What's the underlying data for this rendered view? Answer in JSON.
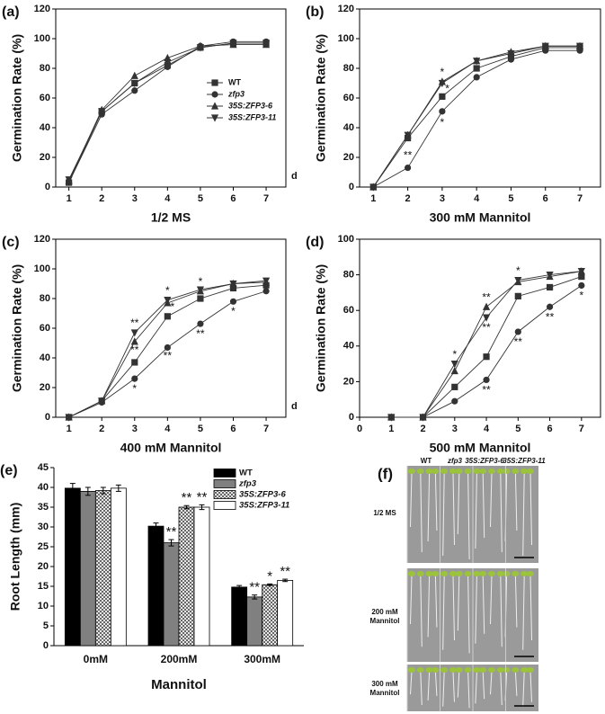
{
  "chart_data": [
    {
      "type": "line",
      "panel_label": "(a)",
      "xlabel": "1/2 MS",
      "x_unit": "d",
      "ylabel": "Germination Rate (%)",
      "x": [
        1,
        2,
        3,
        4,
        5,
        6,
        7
      ],
      "xlim": [
        0.6,
        7.6
      ],
      "xticks": [
        1,
        2,
        3,
        4,
        5,
        6,
        7
      ],
      "ylim": [
        0,
        120
      ],
      "yticks": [
        0,
        20,
        40,
        60,
        80,
        100,
        120
      ],
      "legend": true,
      "series": [
        {
          "name": "WT",
          "italic": false,
          "marker": "square",
          "color": "#333333",
          "values": [
            3,
            51,
            70,
            82,
            94,
            97,
            97
          ]
        },
        {
          "name": "zfp3",
          "italic": true,
          "marker": "circle",
          "color": "#333333",
          "values": [
            3,
            49,
            65,
            81,
            95,
            98,
            98
          ]
        },
        {
          "name": "35S:ZFP3-6",
          "italic": true,
          "marker": "triangle-up",
          "color": "#333333",
          "values": [
            4,
            52,
            75,
            87,
            95,
            96,
            96
          ]
        },
        {
          "name": "35S:ZFP3-11",
          "italic": true,
          "marker": "triangle-down",
          "color": "#333333",
          "values": [
            5,
            51,
            70,
            84,
            94,
            97,
            97
          ]
        }
      ]
    },
    {
      "type": "line",
      "panel_label": "(b)",
      "xlabel": "300 mM Mannitol",
      "x_unit": "d",
      "ylabel": "Germination Rate (%)",
      "x": [
        1,
        2,
        3,
        4,
        5,
        6,
        7
      ],
      "xlim": [
        0.6,
        7.6
      ],
      "xticks": [
        1,
        2,
        3,
        4,
        5,
        6,
        7
      ],
      "ylim": [
        0,
        120
      ],
      "yticks": [
        0,
        20,
        40,
        60,
        80,
        100,
        120
      ],
      "series": [
        {
          "marker": "square",
          "color": "#333333",
          "values": [
            0,
            33,
            61,
            80,
            88,
            94,
            94
          ]
        },
        {
          "marker": "circle",
          "color": "#333333",
          "values": [
            0,
            13,
            51,
            74,
            86,
            92,
            92
          ]
        },
        {
          "marker": "triangle-up",
          "color": "#333333",
          "values": [
            0,
            35,
            71,
            85,
            91,
            95,
            95
          ]
        },
        {
          "marker": "triangle-down",
          "color": "#333333",
          "values": [
            0,
            35,
            70,
            85,
            90,
            95,
            95
          ]
        }
      ],
      "annotations": [
        {
          "text": "**",
          "x": 2,
          "y": 21
        },
        {
          "text": "*",
          "x": 3,
          "y": 77
        },
        {
          "text": "*",
          "x": 3.15,
          "y": 66
        },
        {
          "text": "*",
          "x": 3,
          "y": 43
        }
      ]
    },
    {
      "type": "line",
      "panel_label": "(c)",
      "xlabel": "400 mM Mannitol",
      "x_unit": "d",
      "ylabel": "Germination Rate (%)",
      "x": [
        1,
        2,
        3,
        4,
        5,
        6,
        7
      ],
      "xlim": [
        0.6,
        7.6
      ],
      "xticks": [
        1,
        2,
        3,
        4,
        5,
        6,
        7
      ],
      "ylim": [
        0,
        120
      ],
      "yticks": [
        0,
        20,
        40,
        60,
        80,
        100,
        120
      ],
      "series": [
        {
          "marker": "square",
          "color": "#333333",
          "values": [
            0,
            11,
            37,
            68,
            80,
            87,
            89
          ]
        },
        {
          "marker": "circle",
          "color": "#333333",
          "values": [
            0,
            10,
            26,
            47,
            63,
            78,
            85
          ]
        },
        {
          "marker": "triangle-up",
          "color": "#333333",
          "values": [
            0,
            11,
            51,
            77,
            85,
            90,
            91
          ]
        },
        {
          "marker": "triangle-down",
          "color": "#333333",
          "values": [
            0,
            11,
            57,
            79,
            86,
            90,
            92
          ]
        }
      ],
      "annotations": [
        {
          "text": "**",
          "x": 3,
          "y": 63
        },
        {
          "text": "**",
          "x": 3,
          "y": 45
        },
        {
          "text": "*",
          "x": 3,
          "y": 19
        },
        {
          "text": "*",
          "x": 4,
          "y": 85
        },
        {
          "text": "*",
          "x": 4.15,
          "y": 74
        },
        {
          "text": "**",
          "x": 4,
          "y": 41
        },
        {
          "text": "*",
          "x": 5,
          "y": 91
        },
        {
          "text": "**",
          "x": 5,
          "y": 56
        },
        {
          "text": "*",
          "x": 6,
          "y": 71
        }
      ]
    },
    {
      "type": "line",
      "panel_label": "(d)",
      "xlabel": "500 mM Mannitol",
      "x_unit": "d",
      "ylabel": "Germination Rate (%)",
      "x": [
        1,
        2,
        3,
        4,
        5,
        6,
        7
      ],
      "xlim": [
        0,
        7.6
      ],
      "xticks": [
        0,
        1,
        2,
        3,
        4,
        5,
        6,
        7
      ],
      "ylim": [
        0,
        100
      ],
      "yticks": [
        0,
        20,
        40,
        60,
        80,
        100
      ],
      "series": [
        {
          "marker": "square",
          "color": "#333333",
          "values": [
            0,
            0,
            17,
            34,
            68,
            73,
            79
          ]
        },
        {
          "marker": "circle",
          "color": "#333333",
          "values": [
            0,
            0,
            9,
            21,
            48,
            62,
            74
          ]
        },
        {
          "marker": "triangle-up",
          "color": "#333333",
          "values": [
            0,
            0,
            26,
            62,
            76,
            79,
            82
          ]
        },
        {
          "marker": "triangle-down",
          "color": "#333333",
          "values": [
            0,
            0,
            30,
            56,
            77,
            80,
            82
          ]
        }
      ],
      "annotations": [
        {
          "text": "*",
          "x": 3,
          "y": 35
        },
        {
          "text": "**",
          "x": 4,
          "y": 67
        },
        {
          "text": "**",
          "x": 4,
          "y": 50
        },
        {
          "text": "**",
          "x": 4,
          "y": 15
        },
        {
          "text": "*",
          "x": 5,
          "y": 82
        },
        {
          "text": "**",
          "x": 5,
          "y": 42
        },
        {
          "text": "**",
          "x": 6,
          "y": 56
        },
        {
          "text": "*",
          "x": 7,
          "y": 68
        }
      ]
    },
    {
      "type": "bar",
      "panel_label": "(e)",
      "xlabel": "Mannitol",
      "ylabel": "Root Length (mm)",
      "categories": [
        "0mM",
        "200mM",
        "300mM"
      ],
      "ylim": [
        0,
        45
      ],
      "yticks": [
        0,
        5,
        10,
        15,
        20,
        25,
        30,
        35,
        40,
        45
      ],
      "legend": true,
      "series": [
        {
          "name": "WT",
          "italic": false,
          "color": "#000000",
          "hatch": false,
          "values": [
            39.8,
            30.2,
            14.8
          ],
          "errors": [
            1.2,
            0.8,
            0.4
          ],
          "sig_labels": [
            null,
            null,
            null
          ]
        },
        {
          "name": "zfp3",
          "italic": true,
          "color": "#808080",
          "hatch": false,
          "values": [
            39,
            26,
            12.3
          ],
          "errors": [
            1,
            0.8,
            0.5
          ],
          "sig_labels": [
            null,
            "**",
            "**"
          ]
        },
        {
          "name": "35S:ZFP3-6",
          "italic": true,
          "color": "#ffffff",
          "hatch": true,
          "values": [
            39.2,
            35,
            15.4
          ],
          "errors": [
            0.8,
            0.4,
            0.2
          ],
          "sig_labels": [
            null,
            "**",
            "*"
          ]
        },
        {
          "name": "35S:ZFP3-11",
          "italic": true,
          "color": "#ffffff",
          "hatch": false,
          "values": [
            39.8,
            35,
            16.5
          ],
          "errors": [
            0.8,
            0.6,
            0.3
          ],
          "sig_labels": [
            null,
            "**",
            "**"
          ]
        }
      ]
    }
  ],
  "photo": {
    "panel_label": "(f)",
    "columns": [
      "WT",
      "zfp3",
      "35S:ZFP3-6",
      "35S:ZFP3-11"
    ],
    "rows": [
      "1/2 MS",
      "200 mM Mannitol",
      "300 mM Mannitol"
    ]
  }
}
